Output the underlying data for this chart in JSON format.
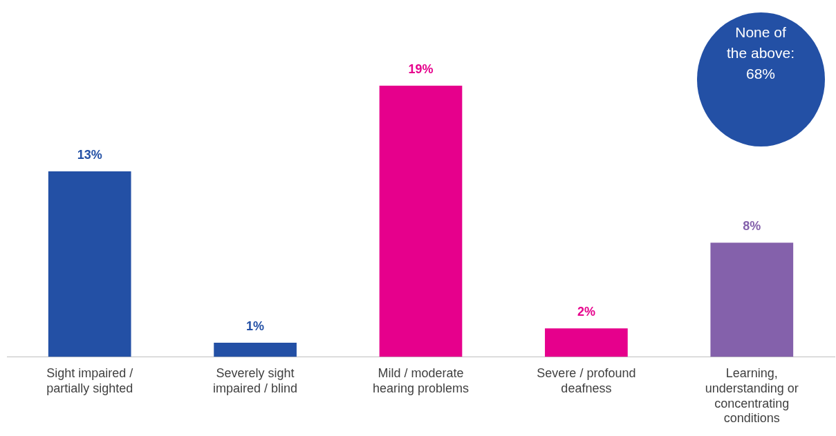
{
  "chart_data": {
    "type": "bar",
    "categories": [
      "Sight impaired / partially sighted",
      "Severely sight impaired / blind",
      "Mild / moderate hearing problems",
      "Severe / profound deafness",
      "Learning, understanding or concentrating conditions"
    ],
    "values": [
      13,
      1,
      19,
      2,
      8
    ],
    "colors": [
      "#2350a5",
      "#2350a5",
      "#e6008c",
      "#e6008c",
      "#8461ab"
    ],
    "value_labels": [
      "13%",
      "1%",
      "19%",
      "2%",
      "8%"
    ],
    "grid": false,
    "legend": false,
    "tick_labels": "x",
    "annotations": [
      "None of the above: 68%"
    ]
  }
}
